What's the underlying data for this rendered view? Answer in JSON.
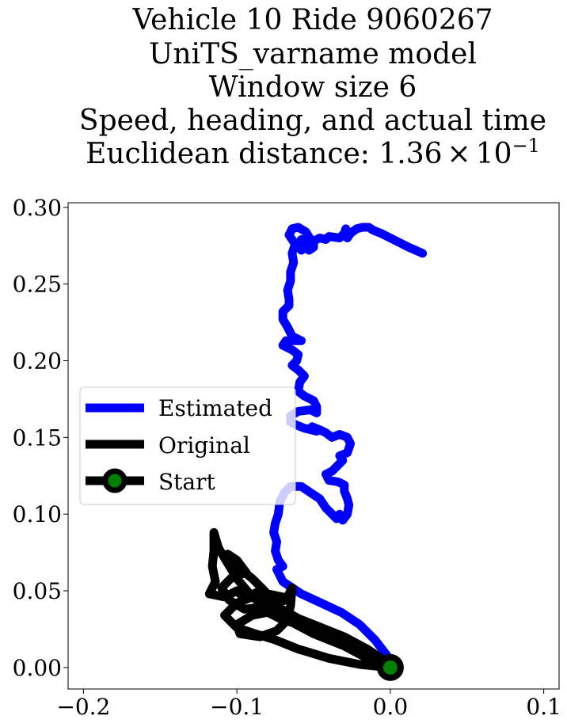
{
  "chart_data": {
    "type": "line",
    "title_lines": [
      "Vehicle 10 Ride 9060267",
      "UniTS_varname model",
      "Window size 6",
      "Speed, heading, and actual time"
    ],
    "title_metric_prefix": "Euclidean distance: 1.36",
    "title_metric_times": "×",
    "title_metric_base": "10",
    "title_metric_exponent": "−1",
    "xlabel": "",
    "ylabel": "",
    "xlim": [
      -0.21,
      0.11
    ],
    "ylim": [
      -0.014,
      0.303
    ],
    "xticks": [
      {
        "value": -0.2,
        "label": "−0.2"
      },
      {
        "value": -0.1,
        "label": "−0.1"
      },
      {
        "value": 0.0,
        "label": "0.0"
      },
      {
        "value": 0.1,
        "label": "0.1"
      }
    ],
    "yticks": [
      {
        "value": 0.0,
        "label": "0.00"
      },
      {
        "value": 0.05,
        "label": "0.05"
      },
      {
        "value": 0.1,
        "label": "0.10"
      },
      {
        "value": 0.15,
        "label": "0.15"
      },
      {
        "value": 0.2,
        "label": "0.20"
      },
      {
        "value": 0.25,
        "label": "0.25"
      },
      {
        "value": 0.3,
        "label": "0.30"
      }
    ],
    "grid": false,
    "legend_position": "center-left",
    "series": [
      {
        "name": "Estimated",
        "color": "#0000ff",
        "points": [
          [
            0.0,
            0.005
          ],
          [
            -0.01,
            0.018
          ],
          [
            -0.02,
            0.028
          ],
          [
            -0.032,
            0.036
          ],
          [
            -0.045,
            0.042
          ],
          [
            -0.058,
            0.048
          ],
          [
            -0.07,
            0.056
          ],
          [
            -0.074,
            0.064
          ],
          [
            -0.07,
            0.066
          ],
          [
            -0.073,
            0.07
          ],
          [
            -0.075,
            0.076
          ],
          [
            -0.074,
            0.082
          ],
          [
            -0.076,
            0.088
          ],
          [
            -0.075,
            0.094
          ],
          [
            -0.073,
            0.1
          ],
          [
            -0.072,
            0.108
          ],
          [
            -0.069,
            0.114
          ],
          [
            -0.065,
            0.118
          ],
          [
            -0.058,
            0.118
          ],
          [
            -0.052,
            0.114
          ],
          [
            -0.046,
            0.11
          ],
          [
            -0.042,
            0.104
          ],
          [
            -0.038,
            0.1
          ],
          [
            -0.035,
            0.097
          ],
          [
            -0.033,
            0.1
          ],
          [
            -0.031,
            0.096
          ],
          [
            -0.028,
            0.1
          ],
          [
            -0.027,
            0.106
          ],
          [
            -0.028,
            0.11
          ],
          [
            -0.03,
            0.115
          ],
          [
            -0.03,
            0.119
          ],
          [
            -0.034,
            0.121
          ],
          [
            -0.04,
            0.122
          ],
          [
            -0.042,
            0.126
          ],
          [
            -0.038,
            0.128
          ],
          [
            -0.034,
            0.132
          ],
          [
            -0.031,
            0.135
          ],
          [
            -0.033,
            0.138
          ],
          [
            -0.028,
            0.14
          ],
          [
            -0.026,
            0.146
          ],
          [
            -0.028,
            0.15
          ],
          [
            -0.033,
            0.152
          ],
          [
            -0.038,
            0.15
          ],
          [
            -0.042,
            0.153
          ],
          [
            -0.046,
            0.155
          ],
          [
            -0.051,
            0.157
          ],
          [
            -0.048,
            0.154
          ],
          [
            -0.056,
            0.156
          ],
          [
            -0.061,
            0.158
          ],
          [
            -0.065,
            0.16
          ],
          [
            -0.065,
            0.164
          ],
          [
            -0.06,
            0.167
          ],
          [
            -0.052,
            0.168
          ],
          [
            -0.048,
            0.166
          ],
          [
            -0.048,
            0.17
          ],
          [
            -0.05,
            0.174
          ],
          [
            -0.056,
            0.177
          ],
          [
            -0.06,
            0.18
          ],
          [
            -0.059,
            0.186
          ],
          [
            -0.056,
            0.19
          ],
          [
            -0.06,
            0.194
          ],
          [
            -0.064,
            0.197
          ],
          [
            -0.061,
            0.2
          ],
          [
            -0.06,
            0.204
          ],
          [
            -0.064,
            0.207
          ],
          [
            -0.07,
            0.21
          ],
          [
            -0.068,
            0.213
          ],
          [
            -0.062,
            0.213
          ],
          [
            -0.058,
            0.213
          ],
          [
            -0.064,
            0.216
          ],
          [
            -0.067,
            0.222
          ],
          [
            -0.07,
            0.227
          ],
          [
            -0.07,
            0.232
          ],
          [
            -0.066,
            0.236
          ],
          [
            -0.066,
            0.24
          ],
          [
            -0.067,
            0.246
          ],
          [
            -0.065,
            0.252
          ],
          [
            -0.065,
            0.258
          ],
          [
            -0.063,
            0.264
          ],
          [
            -0.064,
            0.27
          ],
          [
            -0.062,
            0.276
          ],
          [
            -0.066,
            0.282
          ],
          [
            -0.064,
            0.286
          ],
          [
            -0.06,
            0.287
          ],
          [
            -0.055,
            0.284
          ],
          [
            -0.052,
            0.279
          ],
          [
            -0.055,
            0.274
          ],
          [
            -0.058,
            0.272
          ],
          [
            -0.06,
            0.276
          ],
          [
            -0.058,
            0.279
          ],
          [
            -0.054,
            0.279
          ],
          [
            -0.051,
            0.276
          ],
          [
            -0.053,
            0.272
          ],
          [
            -0.05,
            0.274
          ],
          [
            -0.05,
            0.278
          ],
          [
            -0.046,
            0.28
          ],
          [
            -0.042,
            0.279
          ],
          [
            -0.04,
            0.281
          ],
          [
            -0.033,
            0.28
          ],
          [
            -0.03,
            0.283
          ],
          [
            -0.029,
            0.286
          ],
          [
            -0.028,
            0.28
          ],
          [
            -0.026,
            0.283
          ],
          [
            -0.022,
            0.286
          ],
          [
            -0.018,
            0.287
          ],
          [
            -0.014,
            0.287
          ],
          [
            -0.011,
            0.285
          ],
          [
            -0.006,
            0.283
          ],
          [
            0.002,
            0.279
          ],
          [
            0.012,
            0.274
          ],
          [
            0.021,
            0.27
          ]
        ]
      },
      {
        "name": "Original",
        "color": "#000000",
        "points": [
          [
            0.0,
            0.0
          ],
          [
            -0.015,
            0.006
          ],
          [
            -0.03,
            0.014
          ],
          [
            -0.05,
            0.022
          ],
          [
            -0.065,
            0.03
          ],
          [
            -0.078,
            0.038
          ],
          [
            -0.09,
            0.046
          ],
          [
            -0.1,
            0.058
          ],
          [
            -0.106,
            0.068
          ],
          [
            -0.112,
            0.078
          ],
          [
            -0.115,
            0.088
          ],
          [
            -0.115,
            0.076
          ],
          [
            -0.116,
            0.066
          ],
          [
            -0.114,
            0.056
          ],
          [
            -0.118,
            0.048
          ],
          [
            -0.108,
            0.046
          ],
          [
            -0.1,
            0.05
          ],
          [
            -0.095,
            0.045
          ],
          [
            -0.085,
            0.05
          ],
          [
            -0.075,
            0.042
          ],
          [
            -0.068,
            0.044
          ],
          [
            -0.064,
            0.052
          ],
          [
            -0.065,
            0.04
          ],
          [
            -0.068,
            0.03
          ],
          [
            -0.074,
            0.024
          ],
          [
            -0.085,
            0.02
          ],
          [
            -0.098,
            0.022
          ],
          [
            -0.1,
            0.028
          ],
          [
            -0.09,
            0.034
          ],
          [
            -0.08,
            0.036
          ],
          [
            -0.072,
            0.032
          ],
          [
            -0.06,
            0.028
          ],
          [
            -0.045,
            0.022
          ],
          [
            -0.03,
            0.016
          ],
          [
            -0.015,
            0.01
          ],
          [
            -0.006,
            0.005
          ],
          [
            0.0,
            0.0
          ],
          [
            -0.02,
            0.002
          ],
          [
            -0.04,
            0.006
          ],
          [
            -0.06,
            0.012
          ],
          [
            -0.075,
            0.018
          ],
          [
            -0.088,
            0.022
          ],
          [
            -0.1,
            0.026
          ],
          [
            -0.108,
            0.034
          ],
          [
            -0.1,
            0.042
          ],
          [
            -0.09,
            0.046
          ],
          [
            -0.08,
            0.048
          ],
          [
            -0.07,
            0.046
          ],
          [
            -0.08,
            0.04
          ],
          [
            -0.095,
            0.038
          ],
          [
            -0.105,
            0.044
          ],
          [
            -0.11,
            0.052
          ],
          [
            -0.104,
            0.058
          ],
          [
            -0.094,
            0.062
          ],
          [
            -0.1,
            0.07
          ],
          [
            -0.106,
            0.074
          ],
          [
            -0.1,
            0.066
          ],
          [
            -0.09,
            0.058
          ],
          [
            -0.082,
            0.05
          ],
          [
            -0.074,
            0.04
          ],
          [
            -0.06,
            0.032
          ],
          [
            -0.045,
            0.026
          ],
          [
            -0.03,
            0.02
          ],
          [
            -0.015,
            0.012
          ],
          [
            0.0,
            0.002
          ]
        ]
      }
    ],
    "legend": [
      {
        "label": "Estimated",
        "color": "#0000ff",
        "marker": "none"
      },
      {
        "label": "Original",
        "color": "#000000",
        "marker": "none"
      },
      {
        "label": "Start",
        "color": "#000000",
        "marker": "circle",
        "marker_face": "#008000"
      }
    ],
    "start_point": {
      "x": 0.0,
      "y": 0.0,
      "edge_color": "#000000",
      "face_color": "#008000"
    }
  }
}
